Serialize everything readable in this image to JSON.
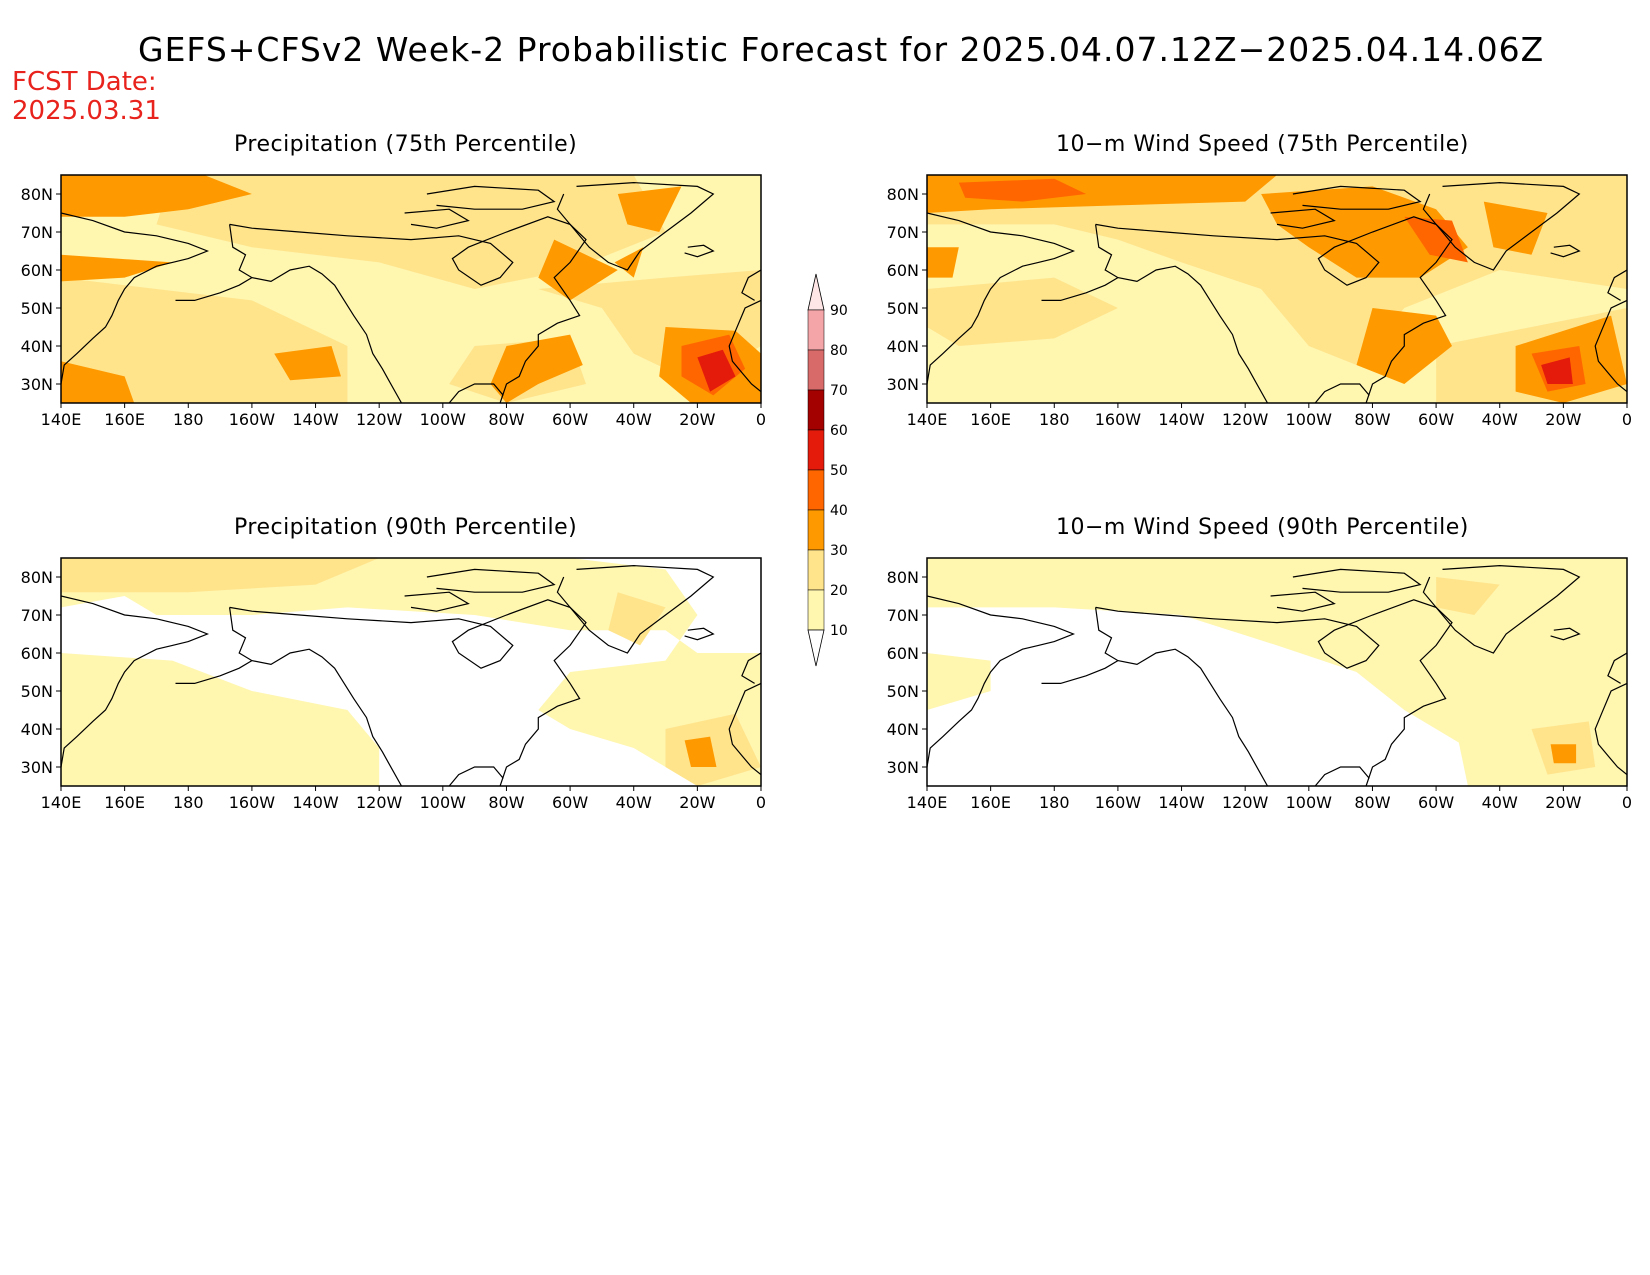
{
  "title": "GEFS+CFSv2 Week-2 Probabilistic Forecast for 2025.04.07.12Z−2025.04.14.06Z",
  "fcst_date_label": "FCST Date:",
  "fcst_date_value": "2025.03.31",
  "panels": [
    {
      "title": "Precipitation (75th Percentile)",
      "variable": "precipitation",
      "percentile": 75
    },
    {
      "title": "10−m Wind Speed (75th Percentile)",
      "variable": "wind",
      "percentile": 75
    },
    {
      "title": "Precipitation (90th Percentile)",
      "variable": "precipitation",
      "percentile": 90
    },
    {
      "title": "10−m Wind Speed (90th Percentile)",
      "variable": "wind",
      "percentile": 90
    }
  ],
  "axes": {
    "lon_labels": [
      "140E",
      "160E",
      "180",
      "160W",
      "140W",
      "120W",
      "100W",
      "80W",
      "60W",
      "40W",
      "20W",
      "0"
    ],
    "lat_labels": [
      "80N",
      "70N",
      "60N",
      "50N",
      "40N",
      "30N"
    ]
  },
  "colorbar": {
    "levels": [
      "90",
      "80",
      "70",
      "60",
      "50",
      "40",
      "30",
      "20",
      "10"
    ],
    "colors": [
      "#ffe6e6",
      "#f4a5a8",
      "#d96a6a",
      "#a30000",
      "#e41a0b",
      "#ff6600",
      "#ff9900",
      "#ffe48c",
      "#fff6b0"
    ]
  },
  "palette": {
    "ocean_white": "#ffffff",
    "level_10": "#fff6b0",
    "level_20": "#ffe48c",
    "level_30": "#ff9900",
    "level_40": "#ff6600",
    "level_50": "#e41a0b",
    "coast": "#000000"
  }
}
